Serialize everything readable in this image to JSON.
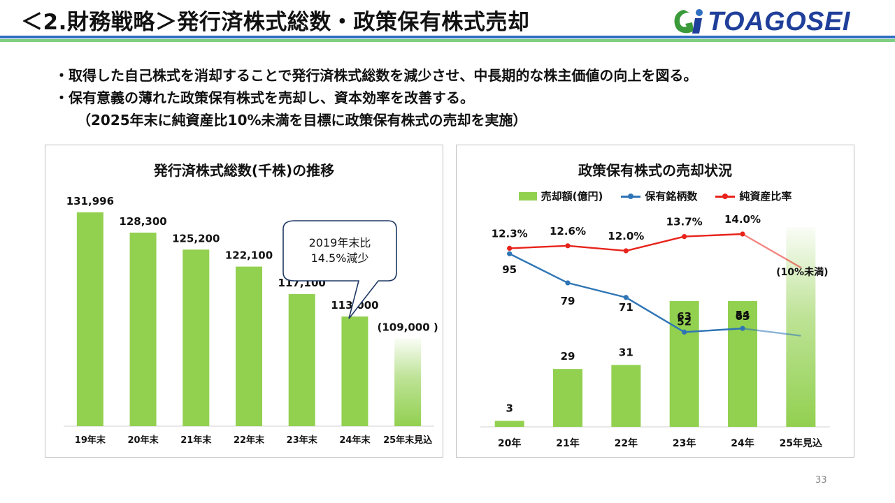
{
  "header": {
    "title": "＜2.財務戦略＞発行済株式総数・政策保有株式売却",
    "logo_text": "TOAGOSEI",
    "rule_colors": [
      "#2f6fc1",
      "#7fcf7f"
    ]
  },
  "bullets": {
    "line1": "・取得した自己株式を消却することで発行済株式総数を減少させ、中長期的な株主価値の向上を図る。",
    "line2": "・保有意義の薄れた政策保有株式を売却し、資本効率を改善する。",
    "line3": "（2025年末に純資産比10%未満を目標に政策保有株式の売却を実施）"
  },
  "page_number": "33",
  "chart_data": [
    {
      "type": "bar",
      "title": "発行済株式総数(千株)の推移",
      "categories": [
        "19年末",
        "20年末",
        "21年末",
        "22年末",
        "23年末",
        "24年末",
        "25年末見込"
      ],
      "values": [
        131996,
        128300,
        125200,
        122100,
        117100,
        113000,
        109000
      ],
      "value_labels": [
        "131,996",
        "128,300",
        "125,200",
        "122,100",
        "117,100",
        "113,000",
        "(109,000 )"
      ],
      "forecast_index": 6,
      "ylim": [
        93000,
        132500
      ],
      "grid": false,
      "bar_color": "#92d050",
      "callout": {
        "line1": "2019年末比",
        "line2": "14.5%減少",
        "points_to": "24年末"
      }
    },
    {
      "type": "bar+line",
      "title": "政策保有株式の売却状況",
      "categories": [
        "20年",
        "21年",
        "22年",
        "23年",
        "24年",
        "25年見込"
      ],
      "series": [
        {
          "name": "売却額(億円)",
          "kind": "bar",
          "color": "#92d050",
          "values": [
            3,
            29,
            31,
            63,
            63,
            null
          ],
          "labels": [
            "3",
            "29",
            "31",
            "63",
            "63",
            ""
          ],
          "forecast_height": 100,
          "ylim": [
            0,
            105
          ]
        },
        {
          "name": "保有銘柄数",
          "kind": "line",
          "color": "#2e75b6",
          "values": [
            95,
            79,
            71,
            52,
            54,
            50
          ],
          "labels": [
            "95",
            "79",
            "71",
            "52",
            "54",
            ""
          ],
          "ylim": [
            0,
            115
          ]
        },
        {
          "name": "純資産比率",
          "kind": "line",
          "color": "#e8231b",
          "values": [
            12.3,
            12.6,
            12.0,
            13.7,
            14.0,
            10.0
          ],
          "labels": [
            "12.3%",
            "12.6%",
            "12.0%",
            "13.7%",
            "14.0%",
            "(10%未満)"
          ],
          "ylim": [
            -9,
            16
          ]
        }
      ],
      "legend_position": "top-center",
      "grid": false
    }
  ]
}
